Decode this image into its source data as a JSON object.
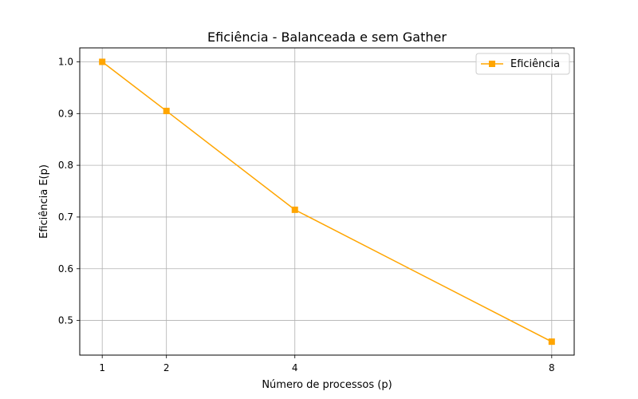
{
  "chart_data": {
    "type": "line",
    "title": "Eficiência - Balanceada e sem Gather",
    "xlabel": "Número de processos (p)",
    "ylabel": "Eficiência E(p)",
    "x": [
      1,
      2,
      4,
      8
    ],
    "xticks": [
      1,
      2,
      4,
      8
    ],
    "yticks": [
      0.5,
      0.6,
      0.7,
      0.8,
      0.9,
      1.0
    ],
    "ytick_labels": [
      "0.5",
      "0.6",
      "0.7",
      "0.8",
      "0.9",
      "1.0"
    ],
    "xlim": [
      0.65,
      8.35
    ],
    "ylim": [
      0.433,
      1.027
    ],
    "grid": true,
    "legend_position": "top-right",
    "series": [
      {
        "name": "Eficiência",
        "values": [
          1.0,
          0.905,
          0.714,
          0.459
        ],
        "color": "#FFA500",
        "marker": "square"
      }
    ]
  }
}
